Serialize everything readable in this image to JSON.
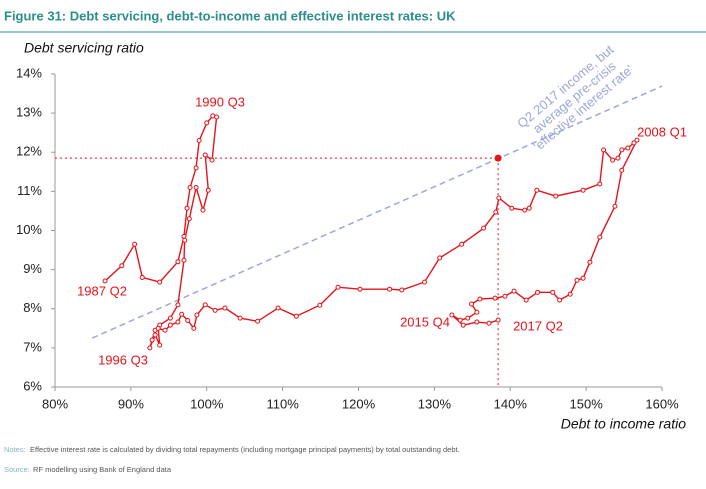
{
  "chart_data": {
    "type": "line",
    "title": "Figure 31: Debt servicing, debt-to-income and effective interest rates: UK",
    "y_label": "Debt servicing ratio",
    "x_label": "Debt to income ratio",
    "color": "#e3141b",
    "x": [
      86.6,
      88.8,
      90.5,
      91.5,
      93.8,
      96.2,
      97.0,
      97.4,
      97.8,
      98.6,
      99.0,
      100.0,
      100.8,
      101.3,
      100.7,
      99.8,
      100.2,
      99.5,
      98.6,
      97.7,
      97.1,
      97.0,
      96.2,
      95.2,
      93.8,
      93.2,
      92.8,
      92.5,
      93.2,
      93.8,
      93.6,
      94.5,
      95.2,
      96.2,
      96.7,
      97.5,
      98.3,
      98.7,
      99.8,
      101.1,
      102.4,
      104.4,
      106.7,
      109.4,
      111.8,
      114.9,
      117.3,
      120.2,
      124.1,
      125.7,
      128.7,
      130.7,
      133.6,
      136.5,
      138.1,
      138.5,
      140.2,
      141.9,
      142.5,
      143.5,
      146.0,
      149.6,
      151.8,
      152.3,
      153.5,
      154.2,
      154.7,
      155.5,
      156.3,
      156.7,
      154.7,
      153.8,
      151.8,
      150.5,
      149.6,
      148.8,
      147.9,
      146.5,
      145.6,
      143.6,
      142.1,
      140.5,
      139.3,
      138.0,
      136.0,
      134.9,
      135.6,
      134.4,
      133.4,
      132.3,
      133.8,
      135.6,
      137.2,
      138.4
    ],
    "values": [
      8.71,
      9.1,
      9.65,
      8.8,
      8.68,
      9.2,
      9.85,
      10.57,
      11.1,
      11.6,
      12.3,
      12.75,
      12.93,
      12.9,
      11.8,
      11.93,
      11.03,
      10.52,
      11.1,
      10.3,
      9.75,
      9.24,
      8.1,
      7.76,
      7.58,
      7.45,
      7.2,
      7.0,
      7.33,
      7.07,
      7.5,
      7.45,
      7.58,
      7.66,
      7.86,
      7.7,
      7.5,
      7.84,
      8.1,
      7.96,
      8.02,
      7.76,
      7.68,
      8.02,
      7.81,
      8.09,
      8.55,
      8.5,
      8.5,
      8.48,
      8.68,
      9.3,
      9.65,
      10.06,
      10.47,
      10.83,
      10.57,
      10.52,
      10.57,
      11.03,
      10.88,
      11.03,
      11.19,
      12.06,
      11.8,
      11.85,
      12.06,
      12.11,
      12.24,
      12.31,
      11.54,
      10.62,
      9.83,
      9.19,
      8.78,
      8.73,
      8.37,
      8.22,
      8.42,
      8.42,
      8.22,
      8.45,
      8.32,
      8.27,
      8.25,
      8.12,
      7.91,
      7.76,
      7.71,
      7.84,
      7.58,
      7.66,
      7.63,
      7.71
    ],
    "xlim": [
      80,
      160
    ],
    "ylim": [
      6,
      14
    ],
    "xticks": [
      {
        "value": 80,
        "label": "80%"
      },
      {
        "value": 90,
        "label": "90%"
      },
      {
        "value": 100,
        "label": "100%"
      },
      {
        "value": 110,
        "label": "110%"
      },
      {
        "value": 120,
        "label": "120%"
      },
      {
        "value": 130,
        "label": "130%"
      },
      {
        "value": 140,
        "label": "140%"
      },
      {
        "value": 150,
        "label": "150%"
      },
      {
        "value": 160,
        "label": "160%"
      }
    ],
    "yticks": [
      {
        "value": 6,
        "label": "6%"
      },
      {
        "value": 7,
        "label": "7%"
      },
      {
        "value": 8,
        "label": "8%"
      },
      {
        "value": 9,
        "label": "9%"
      },
      {
        "value": 10,
        "label": "10%"
      },
      {
        "value": 11,
        "label": "11%"
      },
      {
        "value": 12,
        "label": "12%"
      },
      {
        "value": 13,
        "label": "13%"
      },
      {
        "value": 14,
        "label": "14%"
      }
    ],
    "reference_line": {
      "x": [
        84.9,
        160
      ],
      "y": [
        7.25,
        13.69
      ],
      "color": "#9ea6dc",
      "label": [
        "Q2 2017 income, but",
        "average pre-crisis",
        "'effective interest rate'"
      ]
    },
    "reference_point": {
      "x": 138.4,
      "y": 11.85
    },
    "annotations": [
      "1990 Q3",
      "1987 Q2",
      "1996 Q3",
      "2015 Q4",
      "2017 Q2",
      "2008 Q1"
    ],
    "notes_label": "Notes:",
    "notes": "Effective interest rate is calculated by dividing total repayments (including mortgage principal payments) by total outstanding debt.",
    "source_label": "Source:",
    "source": "RF modelling using Bank of England data"
  }
}
